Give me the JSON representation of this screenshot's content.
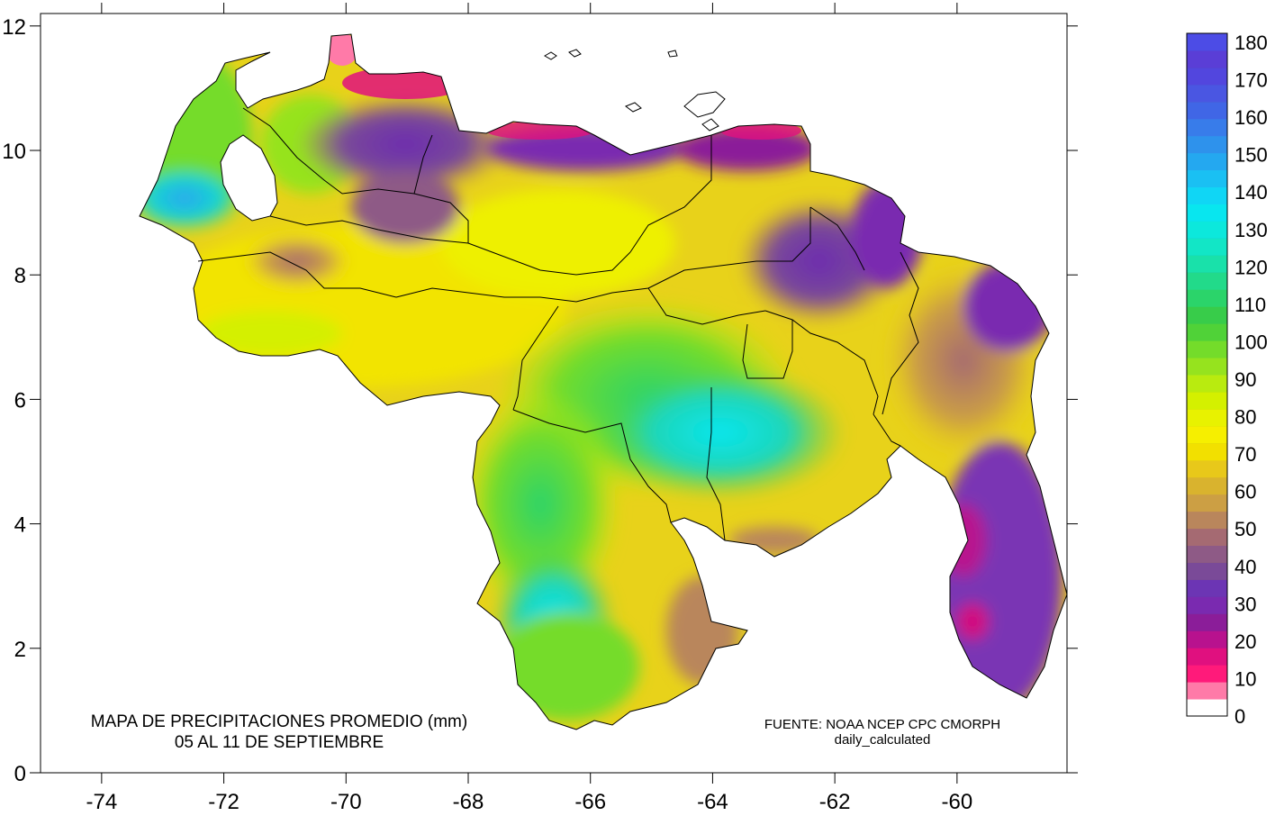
{
  "map": {
    "title_line1": "MAPA DE PRECIPITACIONES PROMEDIO (mm)",
    "title_line2": "05 AL 11 DE SEPTIEMBRE",
    "source_line1": "FUENTE: NOAA NCEP CPC CMORPH",
    "source_line2": "daily_calculated",
    "units": "mm",
    "region": "Venezuela",
    "x_axis": {
      "ticks": [
        -74,
        -72,
        -70,
        -68,
        -66,
        -64,
        -62,
        -60
      ],
      "range": [
        -75,
        -58.2
      ]
    },
    "y_axis": {
      "ticks": [
        0,
        2,
        4,
        6,
        8,
        10,
        12
      ],
      "range": [
        0,
        12.2
      ]
    },
    "colorbar": {
      "labels": [
        0,
        10,
        20,
        30,
        40,
        50,
        60,
        70,
        80,
        90,
        100,
        110,
        120,
        130,
        140,
        150,
        160,
        170,
        180
      ],
      "band_colors": [
        "#ffffff",
        "#ff7aa8",
        "#ff1a7a",
        "#e0107f",
        "#b8128e",
        "#8b1d99",
        "#7a2ab0",
        "#6c35b4",
        "#7a4a98",
        "#8e5a86",
        "#a56a72",
        "#b9865c",
        "#cc9f44",
        "#d9b32e",
        "#e8c81a",
        "#f2e000",
        "#f6ef00",
        "#e8f200",
        "#d4f000",
        "#b9eb0f",
        "#96e31e",
        "#74dc2a",
        "#50d238",
        "#38cc4a",
        "#2bd46a",
        "#22da8a",
        "#19e1aa",
        "#12e6c6",
        "#0ce8dc",
        "#08e6ef",
        "#10d6f5",
        "#1ac0f3",
        "#24a8f0",
        "#2e92ec",
        "#387cea",
        "#4066e6",
        "#4a56e2",
        "#5246de",
        "#5a3ed6",
        "#4c4ce6"
      ]
    }
  }
}
